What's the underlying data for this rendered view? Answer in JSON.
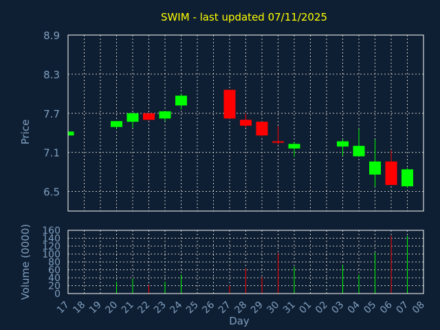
{
  "chart_data": {
    "type": "candlestick",
    "title": "SWIM - last updated 07/11/2025",
    "xlabel": "Day",
    "x_ticks": [
      "17",
      "18",
      "19",
      "20",
      "21",
      "22",
      "23",
      "24",
      "25",
      "26",
      "27",
      "28",
      "29",
      "30",
      "31",
      "01",
      "02",
      "03",
      "04",
      "05",
      "06",
      "07",
      "08"
    ],
    "price_panel": {
      "ylabel": "Price",
      "ylim": [
        6.2,
        8.9
      ],
      "y_ticks": [
        "8.9",
        "8.3",
        "7.7",
        "7.1",
        "6.5"
      ],
      "y_tick_values": [
        8.9,
        8.3,
        7.7,
        7.1,
        6.5
      ],
      "grid": true
    },
    "volume_panel": {
      "ylabel": "Volume (0000)",
      "ylim": [
        0,
        160
      ],
      "y_ticks": [
        "160",
        "140",
        "120",
        "100",
        "80",
        "60",
        "40",
        "20",
        "0"
      ],
      "y_tick_values": [
        160,
        140,
        120,
        100,
        80,
        60,
        40,
        20,
        0
      ],
      "grid": true
    },
    "colors": {
      "up": "#00ff00",
      "down": "#ff0000",
      "grid": "#c8c8c8",
      "axis_text": "#7f9fbf",
      "title": "#ffff00",
      "background": "#0f1f33"
    },
    "candles": [
      {
        "day": "17",
        "open": 7.36,
        "high": 7.42,
        "low": 7.36,
        "close": 7.42,
        "volume": 0
      },
      {
        "day": "20",
        "open": 7.49,
        "high": 7.58,
        "low": 7.46,
        "close": 7.58,
        "volume": 30
      },
      {
        "day": "21",
        "open": 7.57,
        "high": 7.71,
        "low": 7.48,
        "close": 7.7,
        "volume": 38
      },
      {
        "day": "22",
        "open": 7.7,
        "high": 7.7,
        "low": 7.59,
        "close": 7.6,
        "volume": 22
      },
      {
        "day": "23",
        "open": 7.62,
        "high": 7.74,
        "low": 7.58,
        "close": 7.73,
        "volume": 30
      },
      {
        "day": "24",
        "open": 7.82,
        "high": 8.0,
        "low": 7.76,
        "close": 7.97,
        "volume": 48
      },
      {
        "day": "27",
        "open": 8.06,
        "high": 8.06,
        "low": 7.62,
        "close": 7.62,
        "volume": 20
      },
      {
        "day": "28",
        "open": 7.6,
        "high": 7.7,
        "low": 7.48,
        "close": 7.51,
        "volume": 64
      },
      {
        "day": "29",
        "open": 7.57,
        "high": 7.57,
        "low": 7.34,
        "close": 7.36,
        "volume": 42
      },
      {
        "day": "30",
        "open": 7.27,
        "high": 7.5,
        "low": 7.22,
        "close": 7.26,
        "volume": 102
      },
      {
        "day": "31",
        "open": 7.16,
        "high": 7.26,
        "low": 7.03,
        "close": 7.23,
        "volume": 68
      },
      {
        "day": "03",
        "open": 7.19,
        "high": 7.3,
        "low": 7.05,
        "close": 7.27,
        "volume": 72
      },
      {
        "day": "04",
        "open": 7.04,
        "high": 7.46,
        "low": 7.04,
        "close": 7.2,
        "volume": 48
      },
      {
        "day": "05",
        "open": 6.76,
        "high": 7.3,
        "low": 6.57,
        "close": 6.96,
        "volume": 104
      },
      {
        "day": "06",
        "open": 6.96,
        "high": 7.13,
        "low": 6.6,
        "close": 6.6,
        "volume": 146
      },
      {
        "day": "07",
        "open": 6.58,
        "high": 6.86,
        "low": 6.56,
        "close": 6.84,
        "volume": 146
      }
    ]
  }
}
